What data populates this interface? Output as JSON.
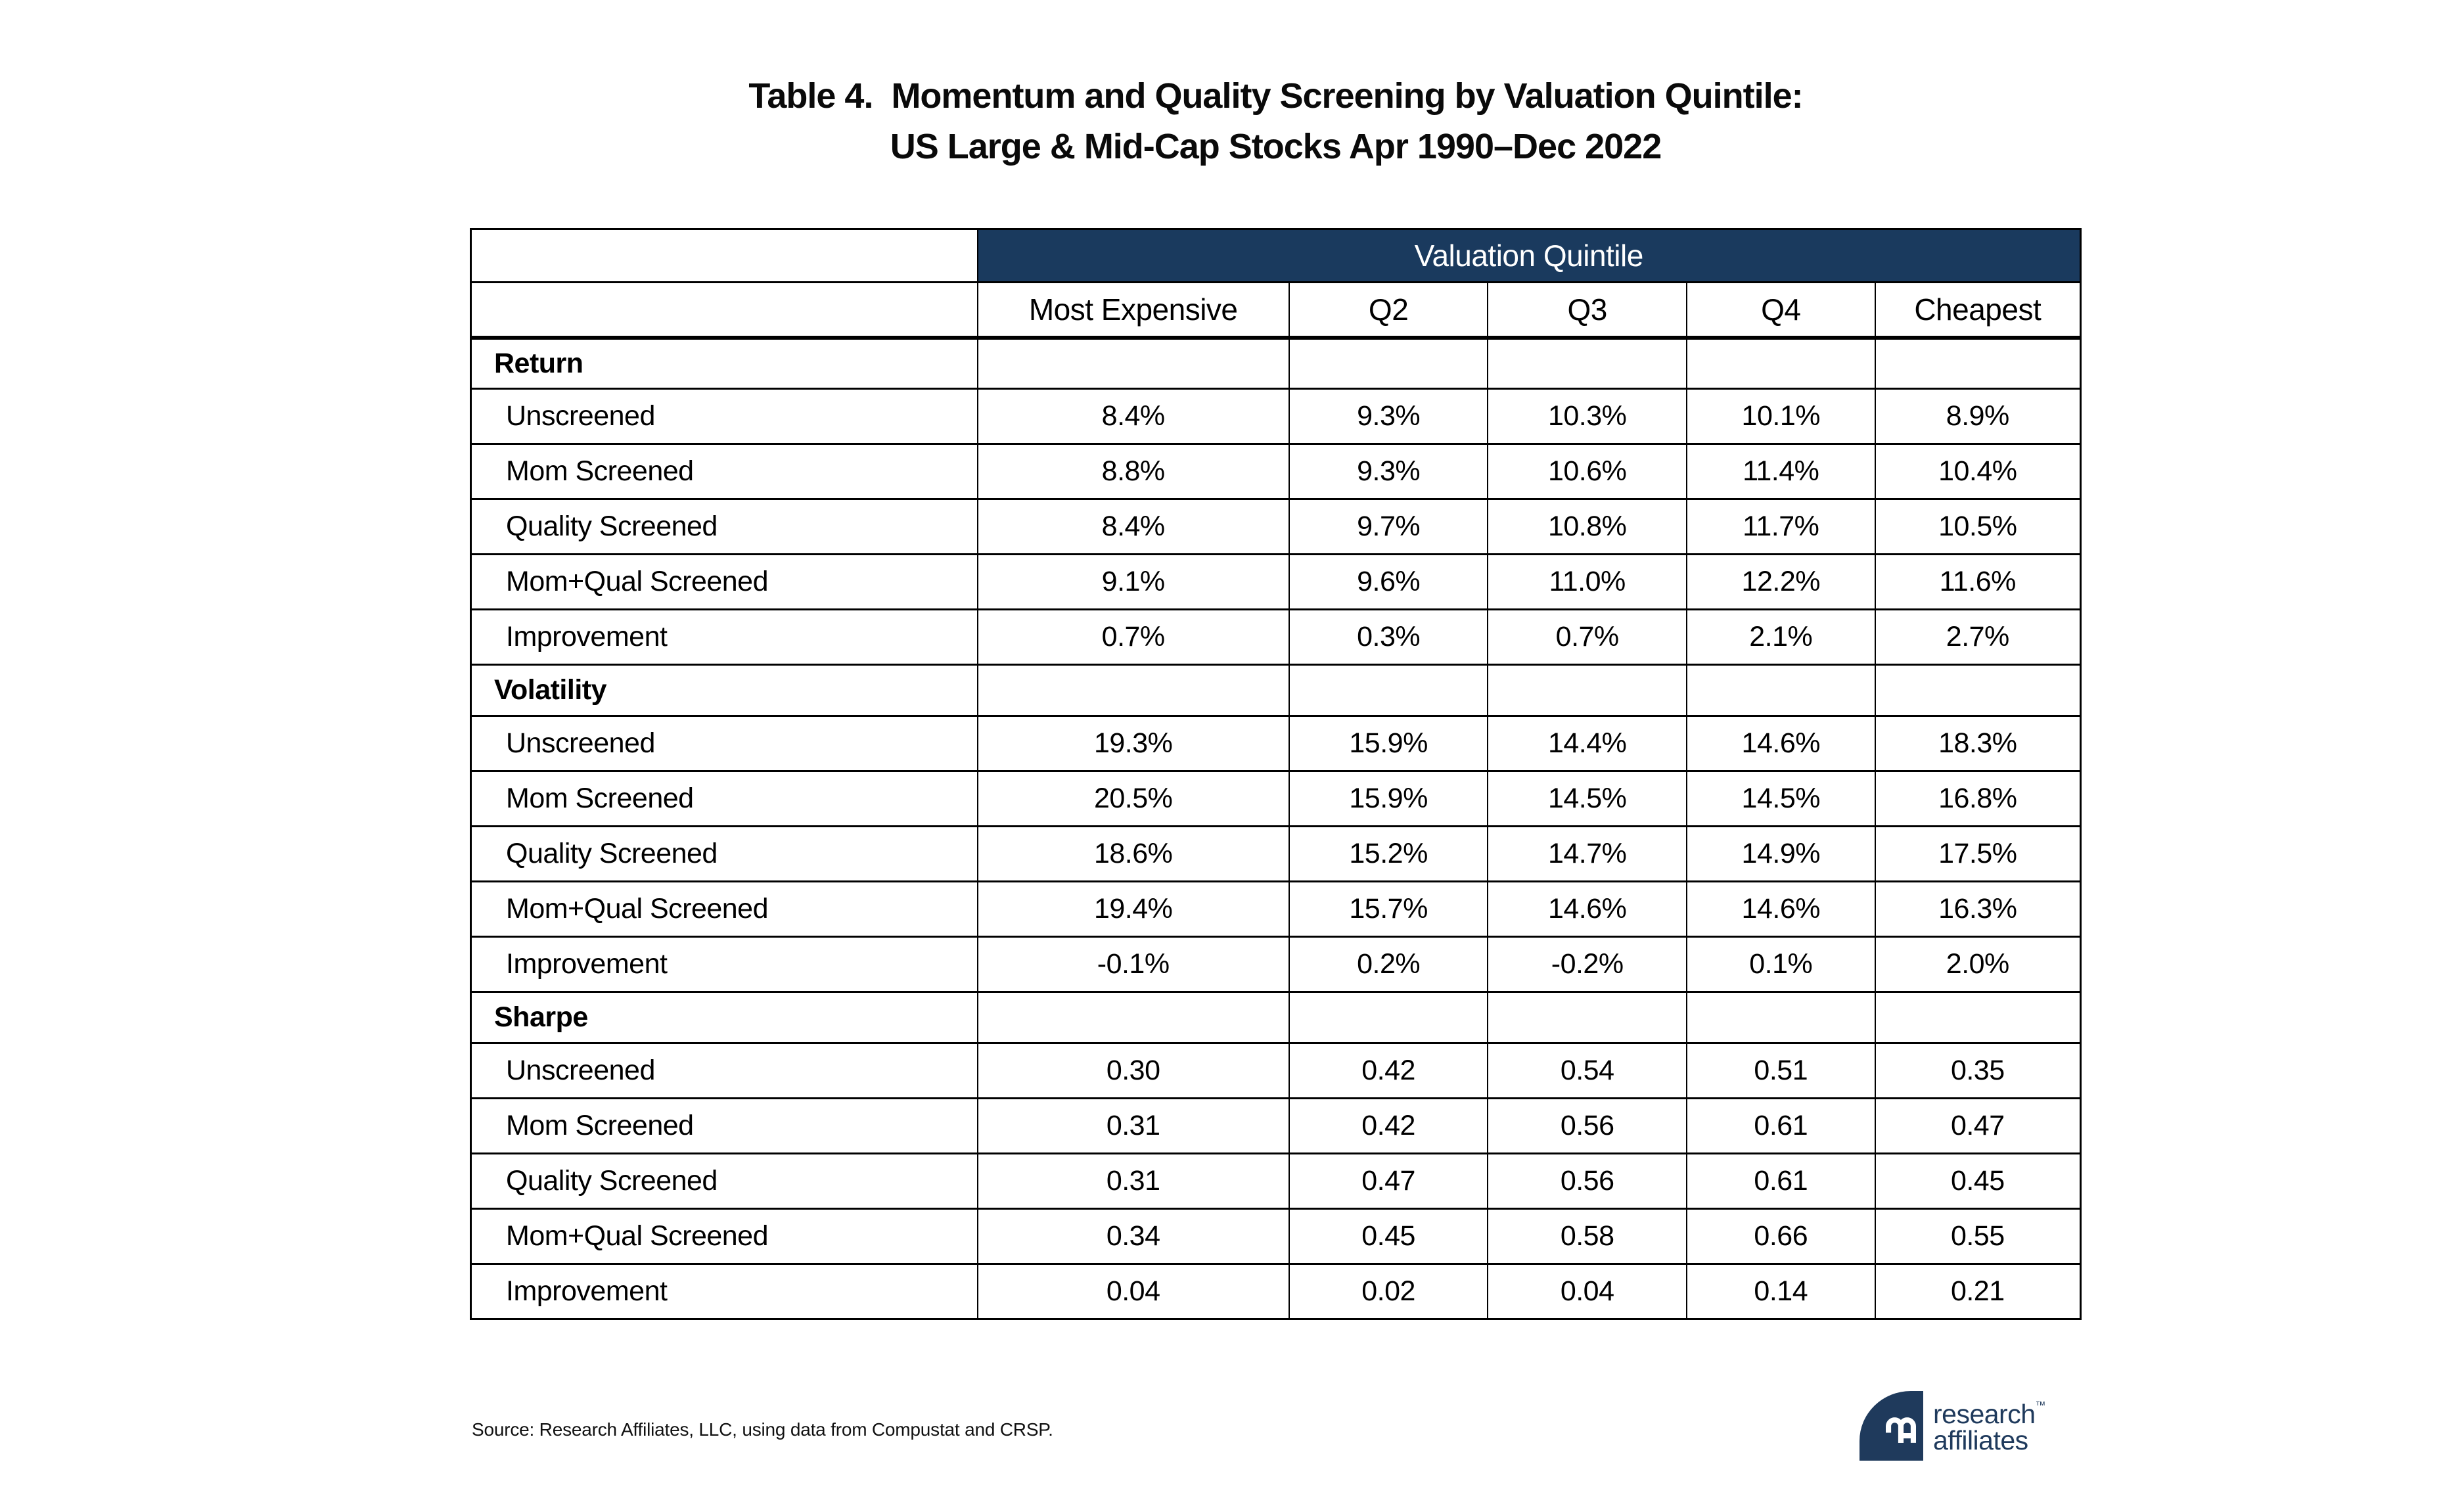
{
  "title": "Table 4.  Momentum and Quality Screening by Valuation Quintile:\nUS Large & Mid-Cap Stocks Apr 1990–Dec 2022",
  "chart_data": {
    "type": "table",
    "group_header": "Valuation Quintile",
    "columns": [
      "Most Expensive",
      "Q2",
      "Q3",
      "Q4",
      "Cheapest"
    ],
    "sections": [
      {
        "name": "Return",
        "rows": [
          {
            "label": "Unscreened",
            "values": [
              "8.4%",
              "9.3%",
              "10.3%",
              "10.1%",
              "8.9%"
            ]
          },
          {
            "label": "Mom Screened",
            "values": [
              "8.8%",
              "9.3%",
              "10.6%",
              "11.4%",
              "10.4%"
            ]
          },
          {
            "label": "Quality Screened",
            "values": [
              "8.4%",
              "9.7%",
              "10.8%",
              "11.7%",
              "10.5%"
            ]
          },
          {
            "label": "Mom+Qual Screened",
            "values": [
              "9.1%",
              "9.6%",
              "11.0%",
              "12.2%",
              "11.6%"
            ]
          },
          {
            "label": "Improvement",
            "values": [
              "0.7%",
              "0.3%",
              "0.7%",
              "2.1%",
              "2.7%"
            ]
          }
        ]
      },
      {
        "name": "Volatility",
        "rows": [
          {
            "label": "Unscreened",
            "values": [
              "19.3%",
              "15.9%",
              "14.4%",
              "14.6%",
              "18.3%"
            ]
          },
          {
            "label": "Mom Screened",
            "values": [
              "20.5%",
              "15.9%",
              "14.5%",
              "14.5%",
              "16.8%"
            ]
          },
          {
            "label": "Quality Screened",
            "values": [
              "18.6%",
              "15.2%",
              "14.7%",
              "14.9%",
              "17.5%"
            ]
          },
          {
            "label": "Mom+Qual Screened",
            "values": [
              "19.4%",
              "15.7%",
              "14.6%",
              "14.6%",
              "16.3%"
            ]
          },
          {
            "label": "Improvement",
            "values": [
              "-0.1%",
              "0.2%",
              "-0.2%",
              "0.1%",
              "2.0%"
            ]
          }
        ]
      },
      {
        "name": "Sharpe",
        "rows": [
          {
            "label": "Unscreened",
            "values": [
              "0.30",
              "0.42",
              "0.54",
              "0.51",
              "0.35"
            ]
          },
          {
            "label": "Mom Screened",
            "values": [
              "0.31",
              "0.42",
              "0.56",
              "0.61",
              "0.47"
            ]
          },
          {
            "label": "Quality Screened",
            "values": [
              "0.31",
              "0.47",
              "0.56",
              "0.61",
              "0.45"
            ]
          },
          {
            "label": "Mom+Qual Screened",
            "values": [
              "0.34",
              "0.45",
              "0.58",
              "0.66",
              "0.55"
            ]
          },
          {
            "label": "Improvement",
            "values": [
              "0.04",
              "0.02",
              "0.04",
              "0.14",
              "0.21"
            ]
          }
        ]
      }
    ]
  },
  "footer": {
    "source": "Source: Research Affiliates, LLC, using data from Compustat and CRSP."
  },
  "logo": {
    "monogram": "RA",
    "line1": "research",
    "line2": "affiliates",
    "trademark": "™"
  },
  "colors": {
    "header_navy": "#1A3A5E",
    "logo_navy": "#1F3A5C",
    "header_text": "#ffffff",
    "border": "#000000",
    "text": "#000000",
    "background": "#ffffff"
  }
}
